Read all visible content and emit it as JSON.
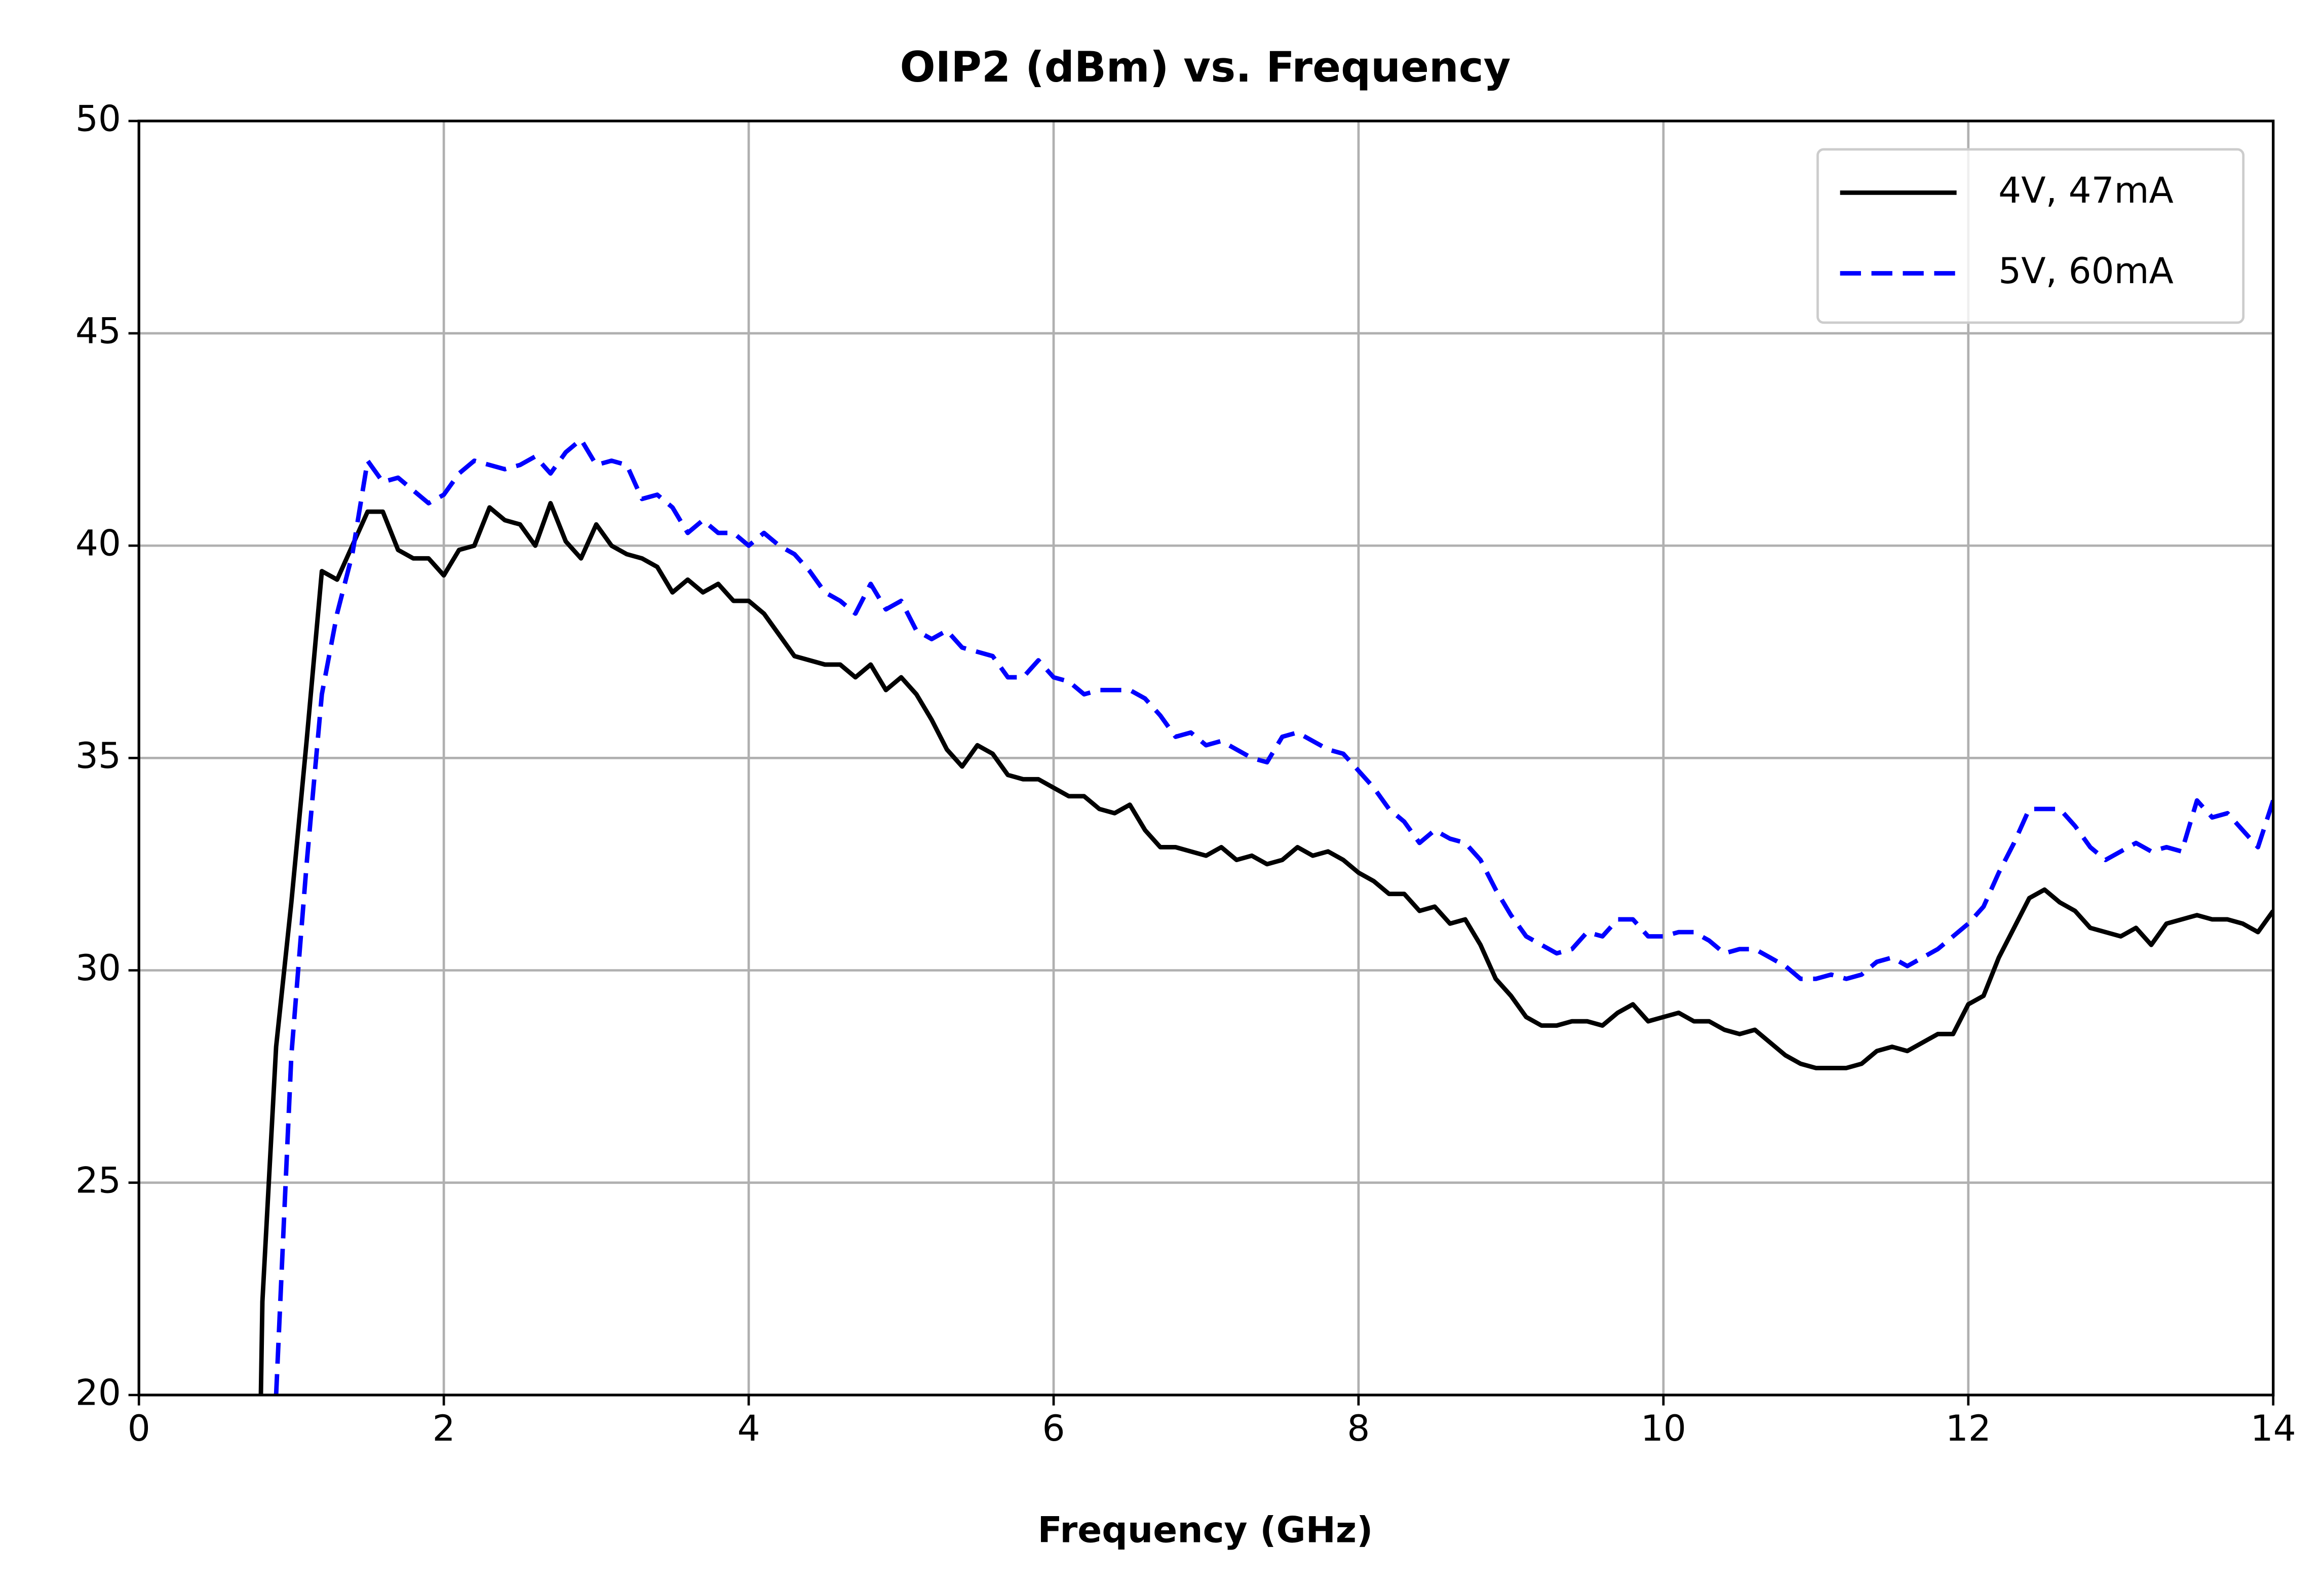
{
  "chart_data": {
    "type": "line",
    "title": "OIP2 (dBm) vs. Frequency",
    "x_label": "Frequency (GHz)",
    "xlim": [
      0,
      14
    ],
    "xticks": [
      0,
      2,
      4,
      6,
      8,
      10,
      12,
      14
    ],
    "ylim": [
      20,
      50
    ],
    "yticks": [
      20,
      25,
      30,
      35,
      40,
      45,
      50
    ],
    "grid": true,
    "legend": "upper right",
    "series": [
      {
        "name": "4V, 47mA",
        "color": "#000000",
        "dash": "solid",
        "x": [
          0.8,
          0.81,
          0.9,
          1.0,
          1.1,
          1.2,
          1.3,
          1.4,
          1.5,
          1.6,
          1.7,
          1.8,
          1.9,
          2.0,
          2.1,
          2.2,
          2.3,
          2.4,
          2.5,
          2.6,
          2.7,
          2.8,
          2.9,
          3.0,
          3.1,
          3.2,
          3.3,
          3.4,
          3.5,
          3.6,
          3.7,
          3.8,
          3.9,
          4.0,
          4.1,
          4.2,
          4.3,
          4.4,
          4.5,
          4.6,
          4.7,
          4.8,
          4.9,
          5.0,
          5.1,
          5.2,
          5.3,
          5.4,
          5.5,
          5.6,
          5.7,
          5.8,
          5.9,
          6.0,
          6.1,
          6.2,
          6.3,
          6.4,
          6.5,
          6.6,
          6.7,
          6.8,
          6.9,
          7.0,
          7.1,
          7.2,
          7.3,
          7.4,
          7.5,
          7.6,
          7.7,
          7.8,
          7.9,
          8.0,
          8.1,
          8.2,
          8.3,
          8.4,
          8.5,
          8.6,
          8.7,
          8.8,
          8.9,
          9.0,
          9.1,
          9.2,
          9.3,
          9.4,
          9.5,
          9.6,
          9.7,
          9.8,
          9.9,
          10.0,
          10.1,
          10.2,
          10.3,
          10.4,
          10.5,
          10.6,
          10.7,
          10.8,
          10.9,
          11.0,
          11.1,
          11.2,
          11.3,
          11.4,
          11.5,
          11.6,
          11.7,
          11.8,
          11.9,
          12.0,
          12.1,
          12.2,
          12.3,
          12.4,
          12.5,
          12.6,
          12.7,
          12.8,
          12.9,
          13.0,
          13.1,
          13.2,
          13.3,
          13.4,
          13.5,
          13.6,
          13.7,
          13.8,
          13.9,
          14.0
        ],
        "values": [
          20,
          22.2,
          28.2,
          31.6,
          35.4,
          39.4,
          39.2,
          40,
          40.8,
          40.8,
          39.9,
          39.7,
          39.7,
          39.3,
          39.9,
          40,
          40.9,
          40.6,
          40.5,
          40.0,
          41.0,
          40.1,
          39.7,
          40.5,
          40.0,
          39.8,
          39.7,
          39.5,
          38.9,
          39.2,
          38.9,
          39.1,
          38.7,
          38.7,
          38.4,
          37.9,
          37.4,
          37.3,
          37.2,
          37.2,
          36.9,
          37.2,
          36.6,
          36.9,
          36.5,
          35.9,
          35.2,
          34.8,
          35.3,
          35.1,
          34.6,
          34.5,
          34.5,
          34.3,
          34.1,
          34.1,
          33.8,
          33.7,
          33.9,
          33.3,
          32.9,
          32.9,
          32.8,
          32.7,
          32.9,
          32.6,
          32.7,
          32.5,
          32.6,
          32.9,
          32.7,
          32.8,
          32.6,
          32.3,
          32.1,
          31.8,
          31.8,
          31.4,
          31.5,
          31.1,
          31.2,
          30.6,
          29.8,
          29.4,
          28.9,
          28.7,
          28.7,
          28.8,
          28.8,
          28.7,
          29.0,
          29.2,
          28.8,
          28.9,
          29.0,
          28.8,
          28.8,
          28.6,
          28.5,
          28.6,
          28.3,
          28.0,
          27.8,
          27.7,
          27.7,
          27.7,
          27.8,
          28.1,
          28.2,
          28.1,
          28.3,
          28.5,
          28.5,
          29.2,
          29.4,
          30.3,
          31.0,
          31.7,
          31.9,
          31.6,
          31.4,
          31.0,
          30.9,
          30.8,
          31.0,
          30.6,
          31.1,
          31.2,
          31.3,
          31.2,
          31.2,
          31.1,
          30.9,
          31.4
        ]
      },
      {
        "name": "5V, 60mA",
        "color": "#0000ff",
        "dash": "dashed",
        "x": [
          0.9,
          1.0,
          1.1,
          1.2,
          1.3,
          1.4,
          1.5,
          1.6,
          1.7,
          1.8,
          1.9,
          2.0,
          2.1,
          2.2,
          2.3,
          2.4,
          2.5,
          2.6,
          2.7,
          2.8,
          2.9,
          3.0,
          3.1,
          3.2,
          3.3,
          3.4,
          3.5,
          3.6,
          3.7,
          3.8,
          3.9,
          4.0,
          4.1,
          4.2,
          4.3,
          4.4,
          4.5,
          4.6,
          4.7,
          4.8,
          4.9,
          5.0,
          5.1,
          5.2,
          5.3,
          5.4,
          5.5,
          5.6,
          5.7,
          5.8,
          5.9,
          6.0,
          6.1,
          6.2,
          6.3,
          6.4,
          6.5,
          6.6,
          6.7,
          6.8,
          6.9,
          7.0,
          7.1,
          7.2,
          7.3,
          7.4,
          7.5,
          7.6,
          7.7,
          7.8,
          7.9,
          8.0,
          8.1,
          8.2,
          8.3,
          8.4,
          8.5,
          8.6,
          8.7,
          8.8,
          8.9,
          9.0,
          9.1,
          9.2,
          9.3,
          9.4,
          9.5,
          9.6,
          9.7,
          9.8,
          9.9,
          10.0,
          10.1,
          10.2,
          10.3,
          10.4,
          10.5,
          10.6,
          10.7,
          10.8,
          10.9,
          11.0,
          11.1,
          11.2,
          11.3,
          11.4,
          11.5,
          11.6,
          11.7,
          11.8,
          11.9,
          12.0,
          12.1,
          12.2,
          12.3,
          12.4,
          12.5,
          12.6,
          12.7,
          12.8,
          12.9,
          13.0,
          13.1,
          13.2,
          13.3,
          13.4,
          13.5,
          13.6,
          13.7,
          13.8,
          13.9,
          14.0
        ],
        "values": [
          20,
          28,
          32.5,
          36.5,
          38.4,
          39.8,
          42.0,
          41.5,
          41.6,
          41.3,
          41.0,
          41.2,
          41.7,
          42.0,
          41.9,
          41.8,
          41.9,
          42.1,
          41.7,
          42.2,
          42.5,
          41.9,
          42.0,
          41.9,
          41.1,
          41.2,
          40.9,
          40.3,
          40.6,
          40.3,
          40.3,
          40.0,
          40.3,
          40.0,
          39.8,
          39.4,
          38.9,
          38.7,
          38.4,
          39.1,
          38.5,
          38.7,
          38.0,
          37.8,
          38.0,
          37.6,
          37.5,
          37.4,
          36.9,
          36.9,
          37.3,
          36.9,
          36.8,
          36.5,
          36.6,
          36.6,
          36.6,
          36.4,
          36.0,
          35.5,
          35.6,
          35.3,
          35.4,
          35.2,
          35.0,
          34.9,
          35.5,
          35.6,
          35.4,
          35.2,
          35.1,
          34.7,
          34.3,
          33.8,
          33.5,
          33.0,
          33.3,
          33.1,
          33.0,
          32.6,
          31.9,
          31.3,
          30.8,
          30.6,
          30.4,
          30.5,
          30.9,
          30.8,
          31.2,
          31.2,
          30.8,
          30.8,
          30.9,
          30.9,
          30.7,
          30.4,
          30.5,
          30.5,
          30.3,
          30.1,
          29.8,
          29.8,
          29.9,
          29.8,
          29.9,
          30.2,
          30.3,
          30.1,
          30.3,
          30.5,
          30.8,
          31.1,
          31.5,
          32.3,
          33.0,
          33.8,
          33.8,
          33.8,
          33.4,
          32.9,
          32.6,
          32.8,
          33.0,
          32.8,
          32.9,
          32.8,
          34.0,
          33.6,
          33.7,
          33.3,
          32.9,
          34.0
        ]
      }
    ]
  }
}
